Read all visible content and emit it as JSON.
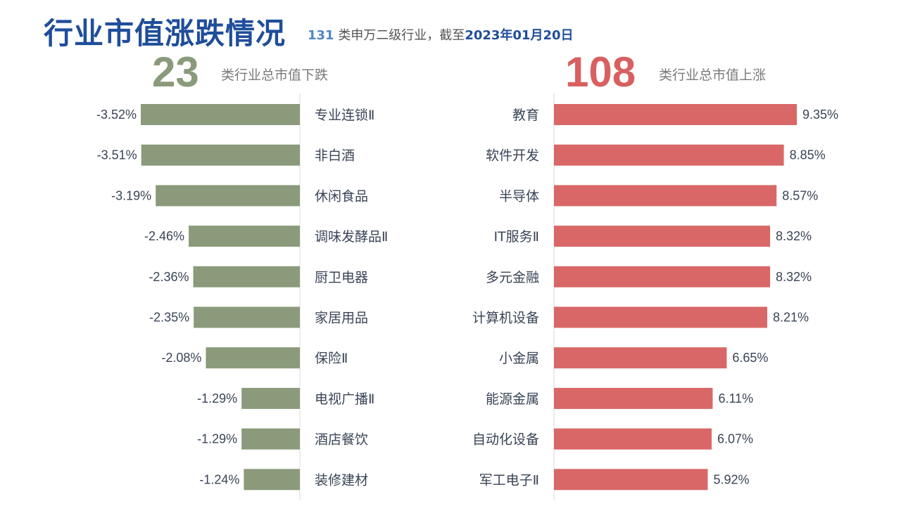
{
  "header": {
    "title": "行业市值涨跌情况",
    "subtitle_count": "131",
    "subtitle_text": "类申万二级行业，截至",
    "subtitle_date": "2023年01月20日"
  },
  "summary": {
    "down_count": "23",
    "down_caption": "类行业总市值下跌",
    "up_count": "108",
    "up_caption": "类行业总市值上涨"
  },
  "colors": {
    "down": "#8a9a7a",
    "up": "#d96767",
    "title": "#1f4e9a"
  },
  "chart_data": [
    {
      "type": "bar",
      "orientation": "horizontal",
      "categories": [
        "专业连锁Ⅱ",
        "非白酒",
        "休闲食品",
        "调味发酵品Ⅱ",
        "厨卫电器",
        "家居用品",
        "保险Ⅱ",
        "电视广播Ⅱ",
        "酒店餐饮",
        "装修建材"
      ],
      "values": [
        -3.52,
        -3.51,
        -3.19,
        -2.46,
        -2.36,
        -2.35,
        -2.08,
        -1.29,
        -1.29,
        -1.24
      ],
      "labels": [
        "-3.52%",
        "-3.51%",
        "-3.19%",
        "-2.46%",
        "-2.36%",
        "-2.35%",
        "-2.08%",
        "-1.29%",
        "-1.29%",
        "-1.24%"
      ]
    },
    {
      "type": "bar",
      "orientation": "horizontal",
      "categories": [
        "教育",
        "软件开发",
        "半导体",
        "IT服务Ⅱ",
        "多元金融",
        "计算机设备",
        "小金属",
        "能源金属",
        "自动化设备",
        "军工电子Ⅱ"
      ],
      "values": [
        9.35,
        8.85,
        8.57,
        8.32,
        8.32,
        8.21,
        6.65,
        6.11,
        6.07,
        5.92
      ],
      "labels": [
        "9.35%",
        "8.85%",
        "8.57%",
        "8.32%",
        "8.32%",
        "8.21%",
        "6.65%",
        "6.11%",
        "6.07%",
        "5.92%"
      ]
    }
  ]
}
